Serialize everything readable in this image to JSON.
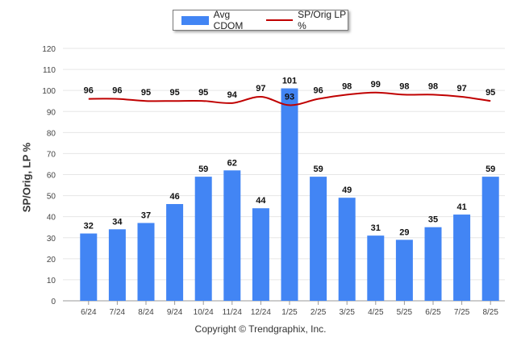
{
  "legend": {
    "bar_label": "Avg CDOM",
    "line_label": "SP/Orig LP %"
  },
  "footer": "Copyright © Trendgraphix, Inc.",
  "colors": {
    "bar": "#4285f4",
    "line": "#c00000",
    "grid": "#e6e6e6",
    "axis": "#999999"
  },
  "chart_data": {
    "type": "bar",
    "categories": [
      "6/24",
      "7/24",
      "8/24",
      "9/24",
      "10/24",
      "11/24",
      "12/24",
      "1/25",
      "2/25",
      "3/25",
      "4/25",
      "5/25",
      "6/25",
      "7/25",
      "8/25"
    ],
    "series": [
      {
        "name": "Avg CDOM",
        "type": "bar",
        "values": [
          32,
          34,
          37,
          46,
          59,
          62,
          44,
          101,
          59,
          49,
          31,
          29,
          35,
          41,
          59
        ]
      },
      {
        "name": "SP/Orig LP %",
        "type": "line",
        "values": [
          96,
          96,
          95,
          95,
          95,
          94,
          97,
          93,
          96,
          98,
          99,
          98,
          98,
          97,
          95
        ]
      }
    ],
    "ylabel": "SP/Orig, LP %",
    "ylim": [
      0,
      120
    ],
    "yticks": [
      0,
      10,
      20,
      30,
      40,
      50,
      60,
      70,
      80,
      90,
      100,
      110,
      120
    ],
    "grid": true,
    "legend_position": "top-center"
  }
}
